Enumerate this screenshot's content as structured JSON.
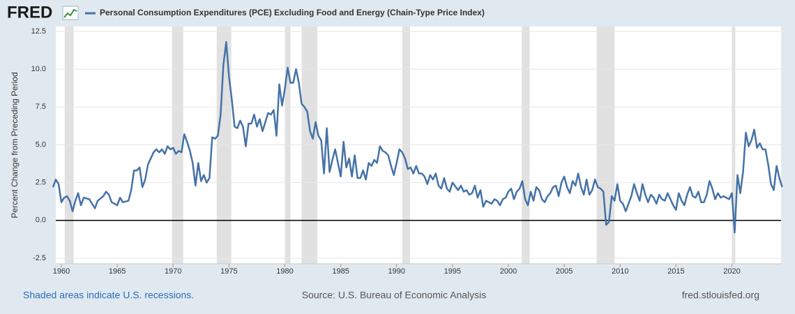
{
  "logo": "FRED",
  "footer": {
    "note": "Shaded areas indicate U.S. recessions.",
    "source": "Source: U.S. Bureau of Economic Analysis",
    "site": "fred.stlouisfed.org"
  },
  "chart_data": {
    "type": "line",
    "y_label": "Percent Change from Preceding Period",
    "x": [
      1959.25,
      1959.5,
      1959.75,
      1960,
      1960.25,
      1960.5,
      1960.75,
      1961,
      1961.25,
      1961.5,
      1961.75,
      1962,
      1962.5,
      1963,
      1963.25,
      1963.75,
      1964,
      1964.25,
      1964.5,
      1965,
      1965.25,
      1965.5,
      1966,
      1966.25,
      1966.5,
      1966.75,
      1967,
      1967.25,
      1967.5,
      1967.75,
      1968.25,
      1968.5,
      1968.75,
      1969,
      1969.25,
      1969.5,
      1969.75,
      1970,
      1970.25,
      1970.5,
      1970.75,
      1971,
      1971.25,
      1971.5,
      1971.75,
      1972,
      1972.25,
      1972.5,
      1972.75,
      1973,
      1973.25,
      1973.5,
      1973.75,
      1974,
      1974.25,
      1974.5,
      1974.75,
      1975,
      1975.25,
      1975.5,
      1975.75,
      1976,
      1976.25,
      1976.5,
      1976.75,
      1977,
      1977.25,
      1977.5,
      1977.75,
      1978,
      1978.25,
      1978.5,
      1978.75,
      1979,
      1979.25,
      1979.5,
      1979.75,
      1980,
      1980.25,
      1980.5,
      1980.75,
      1981,
      1981.25,
      1981.5,
      1981.75,
      1982,
      1982.25,
      1982.5,
      1982.75,
      1983,
      1983.25,
      1983.5,
      1983.75,
      1984,
      1984.25,
      1984.5,
      1984.75,
      1985,
      1985.25,
      1985.5,
      1985.75,
      1986,
      1986.25,
      1986.5,
      1986.75,
      1987,
      1987.25,
      1987.5,
      1987.75,
      1988,
      1988.25,
      1988.5,
      1988.75,
      1989,
      1989.25,
      1989.5,
      1989.75,
      1990,
      1990.25,
      1990.5,
      1990.75,
      1991,
      1991.25,
      1991.5,
      1991.75,
      1992,
      1992.25,
      1992.5,
      1992.75,
      1993,
      1993.25,
      1993.5,
      1993.75,
      1994,
      1994.25,
      1994.5,
      1994.75,
      1995,
      1995.5,
      1995.75,
      1996,
      1996.25,
      1996.5,
      1996.75,
      1997,
      1997.25,
      1997.5,
      1997.75,
      1998,
      1998.5,
      1998.75,
      1999,
      1999.25,
      1999.5,
      1999.75,
      2000,
      2000.25,
      2000.5,
      2000.75,
      2001,
      2001.25,
      2001.5,
      2001.75,
      2002,
      2002.25,
      2002.5,
      2002.75,
      2003,
      2003.25,
      2003.5,
      2003.75,
      2004,
      2004.25,
      2004.5,
      2004.75,
      2005,
      2005.25,
      2005.5,
      2005.75,
      2006,
      2006.25,
      2006.5,
      2006.75,
      2007,
      2007.25,
      2007.5,
      2007.75,
      2008,
      2008.25,
      2008.5,
      2008.75,
      2009,
      2009.25,
      2009.5,
      2009.75,
      2010,
      2010.25,
      2010.5,
      2010.75,
      2011,
      2011.25,
      2011.5,
      2011.75,
      2012,
      2012.25,
      2012.5,
      2012.75,
      2013,
      2013.25,
      2013.5,
      2013.75,
      2014,
      2014.25,
      2014.5,
      2014.75,
      2015,
      2015.25,
      2015.5,
      2015.75,
      2016,
      2016.25,
      2016.5,
      2016.75,
      2017,
      2017.25,
      2017.5,
      2017.75,
      2018,
      2018.25,
      2018.5,
      2018.75,
      2019,
      2019.25,
      2019.5,
      2019.75,
      2020,
      2020.25,
      2020.5,
      2020.75,
      2021,
      2021.25,
      2021.5,
      2021.75,
      2022,
      2022.25,
      2022.5,
      2022.75,
      2023,
      2023.25,
      2023.5,
      2023.75,
      2024,
      2024.25,
      2024.5
    ],
    "series": [
      {
        "name": "Personal Consumption Expenditures (PCE) Excluding Food and Energy (Chain-Type Price Index)",
        "color": "#4572a7",
        "values": [
          2.2,
          2.7,
          2.4,
          1.2,
          1.5,
          1.6,
          1.3,
          0.6,
          1.3,
          1.8,
          1.0,
          1.5,
          1.4,
          0.8,
          1.3,
          1.6,
          1.9,
          1.7,
          1.2,
          1.0,
          1.5,
          1.2,
          1.3,
          2.0,
          3.3,
          3.3,
          3.5,
          2.2,
          2.7,
          3.7,
          4.5,
          4.7,
          4.5,
          4.7,
          4.4,
          4.9,
          4.7,
          4.8,
          4.4,
          4.6,
          4.5,
          5.7,
          5.2,
          4.6,
          3.8,
          2.3,
          3.8,
          2.6,
          3.0,
          2.5,
          2.8,
          5.5,
          5.4,
          5.6,
          7.0,
          10.3,
          11.8,
          9.5,
          8.0,
          6.2,
          6.1,
          6.6,
          6.2,
          4.9,
          6.4,
          6.4,
          7.0,
          6.2,
          6.7,
          5.9,
          6.5,
          7.1,
          7.0,
          7.3,
          5.6,
          9.0,
          7.6,
          8.7,
          10.1,
          9.1,
          9.1,
          10.0,
          9.1,
          7.7,
          7.5,
          7.2,
          5.9,
          5.4,
          6.5,
          5.6,
          5.3,
          3.1,
          6.1,
          3.2,
          4.0,
          4.7,
          3.8,
          2.9,
          5.2,
          3.5,
          4.1,
          2.9,
          4.3,
          2.8,
          2.8,
          3.3,
          2.7,
          3.8,
          3.6,
          4.0,
          3.8,
          4.9,
          4.6,
          4.5,
          4.3,
          3.6,
          3.0,
          3.8,
          4.7,
          4.5,
          4.1,
          3.4,
          3.5,
          3.1,
          3.6,
          3.1,
          3.1,
          2.9,
          2.4,
          3.0,
          2.7,
          3.1,
          2.3,
          2.1,
          2.8,
          2.1,
          1.9,
          2.5,
          2.0,
          2.3,
          1.9,
          2.0,
          1.7,
          1.8,
          2.3,
          1.5,
          2.0,
          0.9,
          1.3,
          1.1,
          1.4,
          1.3,
          1.0,
          1.4,
          1.5,
          1.9,
          2.1,
          1.4,
          1.9,
          2.1,
          2.6,
          1.4,
          1.0,
          1.9,
          1.3,
          2.2,
          2.0,
          1.4,
          1.2,
          1.6,
          1.8,
          2.2,
          2.3,
          1.6,
          2.5,
          2.9,
          2.2,
          1.8,
          2.6,
          2.3,
          3.1,
          2.2,
          1.7,
          2.7,
          1.7,
          2.0,
          2.7,
          2.2,
          2.1,
          1.9,
          -0.3,
          -0.1,
          1.6,
          1.3,
          2.4,
          1.3,
          1.1,
          0.6,
          1.1,
          1.6,
          2.4,
          1.8,
          1.3,
          2.4,
          1.7,
          1.2,
          1.7,
          1.5,
          1.1,
          1.7,
          1.4,
          1.3,
          1.8,
          1.4,
          1.0,
          0.7,
          1.8,
          1.3,
          1.0,
          1.7,
          2.2,
          1.6,
          1.5,
          1.9,
          1.2,
          1.2,
          1.7,
          2.6,
          2.1,
          1.4,
          1.8,
          1.5,
          1.6,
          1.5,
          1.4,
          1.8,
          -0.8,
          3.0,
          1.8,
          3.2,
          5.8,
          4.9,
          5.3,
          6.0,
          4.8,
          5.1,
          4.7,
          4.7,
          3.7,
          2.4,
          2.0,
          3.6,
          2.8,
          2.2
        ]
      }
    ],
    "recessions": [
      [
        1960.3,
        1961.1
      ],
      [
        1969.9,
        1970.9
      ],
      [
        1973.9,
        1975.2
      ],
      [
        1980.0,
        1980.5
      ],
      [
        1981.5,
        1982.9
      ],
      [
        1990.5,
        1991.2
      ],
      [
        2001.2,
        2001.9
      ],
      [
        2007.9,
        2009.5
      ],
      [
        2020.0,
        2020.3
      ]
    ],
    "recession_color": "#e1e1e1",
    "xlim": [
      1959.5,
      2024.4
    ],
    "xticks": [
      1960,
      1965,
      1970,
      1975,
      1980,
      1985,
      1990,
      1995,
      2000,
      2005,
      2010,
      2015,
      2020
    ],
    "ylim": [
      -2.5,
      12.5
    ],
    "yticks": [
      -2.5,
      2.5,
      {
        "value": 0,
        "label": "0.0"
      },
      {
        "value": 5,
        "label": "5.0"
      },
      7.5,
      {
        "value": 10,
        "label": "10.0"
      },
      12.5
    ],
    "grid": true
  }
}
